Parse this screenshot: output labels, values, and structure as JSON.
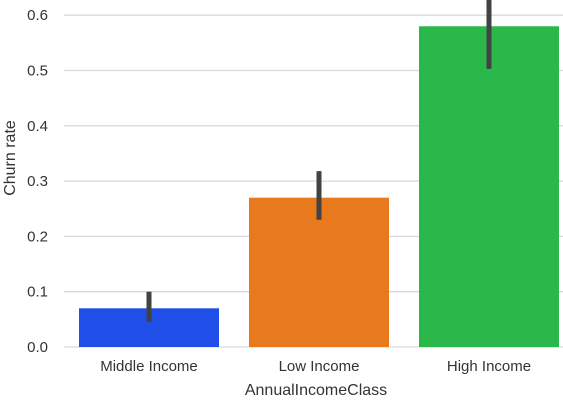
{
  "chart_data": {
    "type": "bar",
    "categories": [
      "Middle Income",
      "Low Income",
      "High Income"
    ],
    "values": [
      0.07,
      0.27,
      0.58
    ],
    "error_bars": [
      {
        "low": 0.045,
        "high": 0.1
      },
      {
        "low": 0.23,
        "high": 0.318
      },
      {
        "low": 0.503,
        "high": 0.65
      }
    ],
    "bar_colors": [
      "#1f4ee8",
      "#e8791c",
      "#2bb84a"
    ],
    "error_bar_color": "#424242",
    "grid_color": "#d9d9d9",
    "xlabel": "AnnualIncomeClass",
    "ylabel": "Churn rate",
    "ylim": [
      0,
      0.6
    ],
    "yticks": [
      "0.0",
      "0.1",
      "0.2",
      "0.3",
      "0.4",
      "0.5",
      "0.6"
    ],
    "grid": true,
    "legend": "none"
  }
}
